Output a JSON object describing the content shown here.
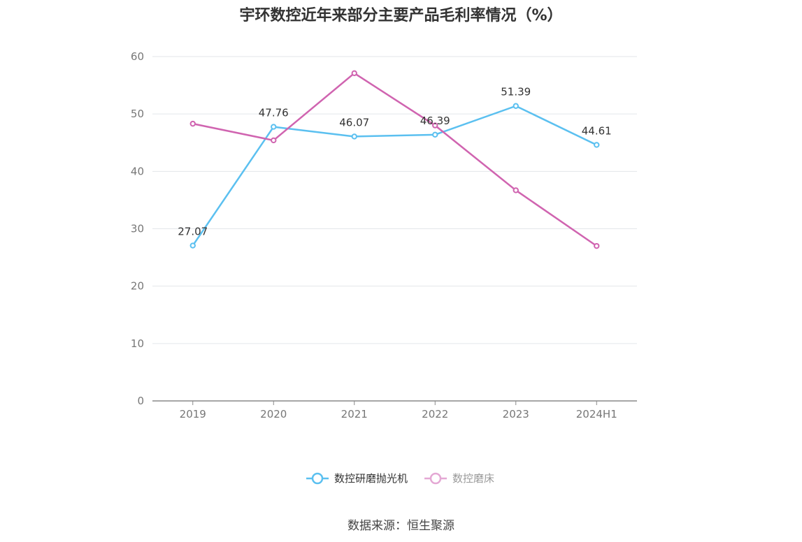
{
  "chart_data": {
    "type": "line",
    "title": "宇环数控近年来部分主要产品毛利率情况（%）",
    "categories": [
      "2019",
      "2020",
      "2021",
      "2022",
      "2023",
      "2024H1"
    ],
    "ylim": [
      0,
      60
    ],
    "yticks": [
      0,
      10,
      20,
      30,
      40,
      50,
      60
    ],
    "grid": true,
    "legend_position": "bottom",
    "series": [
      {
        "name": "数控研磨抛光机",
        "color": "#5bc0f0",
        "values": [
          27.07,
          47.76,
          46.07,
          46.39,
          51.39,
          44.61
        ],
        "labels": [
          "27.07",
          "47.76",
          "46.07",
          "46.39",
          "51.39",
          "44.61"
        ]
      },
      {
        "name": "数控磨床",
        "color": "#d064b0",
        "values": [
          48.3,
          45.4,
          57.1,
          48.0,
          36.7,
          27.0
        ]
      }
    ],
    "source": "数据来源：恒生聚源"
  }
}
